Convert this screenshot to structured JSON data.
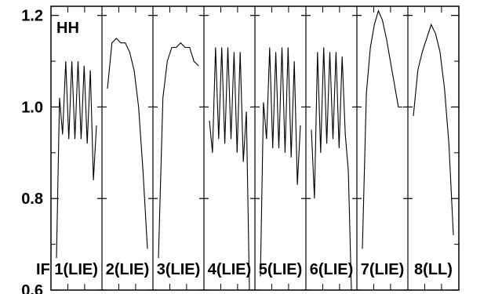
{
  "chart_data": {
    "type": "line",
    "title": "",
    "corner_label": "HH",
    "xlabel": "",
    "ylabel": "",
    "ylim": [
      0.6,
      1.22
    ],
    "yticks": [
      0.6,
      0.8,
      1.0,
      1.2
    ],
    "ytick_labels": [
      "0.6",
      "0.8",
      "1.0",
      "1.2"
    ],
    "panel_label_prefix": "IF",
    "panels": [
      {
        "label": "1(LIE)",
        "values": [
          0.67,
          1.02,
          0.94,
          1.1,
          0.93,
          1.1,
          0.93,
          1.1,
          0.93,
          1.09,
          0.92,
          1.08,
          0.84,
          0.96
        ]
      },
      {
        "label": "2(LIE)",
        "values": [
          1.04,
          1.14,
          1.15,
          1.14,
          1.14,
          1.12,
          1.08,
          1.0,
          0.86,
          0.69
        ]
      },
      {
        "label": "3(LIE)",
        "values": [
          0.67,
          1.02,
          1.1,
          1.13,
          1.13,
          1.14,
          1.13,
          1.13,
          1.1,
          1.09
        ]
      },
      {
        "label": "4(LIE)",
        "values": [
          0.97,
          0.9,
          1.13,
          0.93,
          1.13,
          0.92,
          1.13,
          0.93,
          1.12,
          0.9,
          1.12,
          0.88,
          0.99,
          0.6
        ]
      },
      {
        "label": "5(LIE)",
        "values": [
          0.63,
          1.01,
          0.93,
          1.13,
          0.91,
          1.12,
          0.91,
          1.13,
          0.9,
          1.13,
          0.89,
          1.1,
          0.83,
          0.96
        ]
      },
      {
        "label": "6(LIE)",
        "values": [
          0.95,
          0.8,
          1.12,
          0.9,
          1.13,
          0.92,
          1.12,
          0.93,
          1.12,
          0.91,
          1.11,
          0.94,
          0.86,
          0.6
        ]
      },
      {
        "label": "7(LIE)",
        "values": [
          0.69,
          1.03,
          1.13,
          1.18,
          1.21,
          1.19,
          1.15,
          1.1,
          1.05,
          1.0,
          1.0
        ]
      },
      {
        "label": "8(LL)",
        "values": [
          0.98,
          1.08,
          1.12,
          1.15,
          1.18,
          1.16,
          1.12,
          1.04,
          0.92,
          0.72
        ]
      }
    ]
  }
}
